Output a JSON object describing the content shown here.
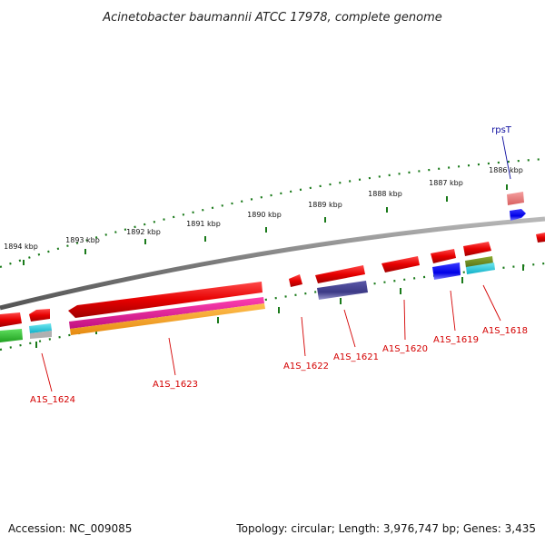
{
  "header": {
    "title": "Acinetobacter baumannii ATCC 17978, complete genome"
  },
  "ruler": {
    "tick_labels": [
      {
        "text": "1886 kbp"
      },
      {
        "text": "1887 kbp"
      },
      {
        "text": "1888 kbp"
      },
      {
        "text": "1889 kbp"
      },
      {
        "text": "1890 kbp"
      },
      {
        "text": "1891 kbp"
      },
      {
        "text": "1892 kbp"
      },
      {
        "text": "1893 kbp"
      },
      {
        "text": "1894 kbp"
      }
    ]
  },
  "genes": {
    "labels": [
      {
        "text": "rpsT",
        "color": "#1010a0"
      },
      {
        "text": "A1S_1618",
        "color": "#d40000"
      },
      {
        "text": "A1S_1619",
        "color": "#d40000"
      },
      {
        "text": "A1S_1620",
        "color": "#d40000"
      },
      {
        "text": "A1S_1621",
        "color": "#d40000"
      },
      {
        "text": "A1S_1622",
        "color": "#d40000"
      },
      {
        "text": "A1S_1623",
        "color": "#d40000"
      },
      {
        "text": "A1S_1624",
        "color": "#d40000"
      }
    ]
  },
  "footer": {
    "accession": "Accession: NC_009085",
    "topology": "Topology: circular; Length: 3,976,747 bp; Genes: 3,435"
  },
  "colors": {
    "backbone": "#8a8a8a",
    "tick_dots": "#1a7a1a",
    "gene_red": "#e60000",
    "gene_blue": "#0000e6",
    "gene_navy": "#3c3a86",
    "gene_magenta": "#e0209a",
    "gene_orange": "#f29a1e",
    "gene_green": "#30c030",
    "gene_cyan": "#20c8d8",
    "gene_olive": "#6a8a20",
    "gene_pink": "#e88080"
  }
}
